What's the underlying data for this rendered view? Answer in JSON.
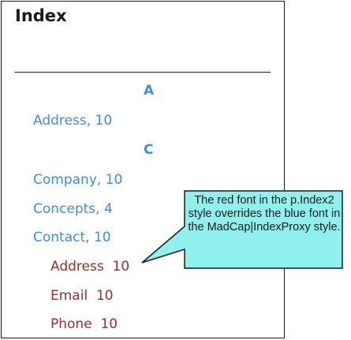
{
  "index": {
    "title": "Index",
    "sections": [
      {
        "letter": "A",
        "entries": [
          {
            "label": "Address, 10"
          }
        ]
      },
      {
        "letter": "C",
        "entries": [
          {
            "label": "Company, 10"
          },
          {
            "label": "Concepts, 4"
          },
          {
            "label": "Contact, 10"
          }
        ],
        "subentries": [
          {
            "label": "Address  10"
          },
          {
            "label": "Email  10"
          },
          {
            "label": "Phone  10"
          }
        ]
      }
    ]
  },
  "callout": {
    "text": "The red font in the p.Index2 style overrides the blue font in the MadCap|IndexProxy style.",
    "fill": "#8ff0ee"
  },
  "colors": {
    "level1": "#3d8fd9",
    "level2": "#9b2e2e"
  }
}
